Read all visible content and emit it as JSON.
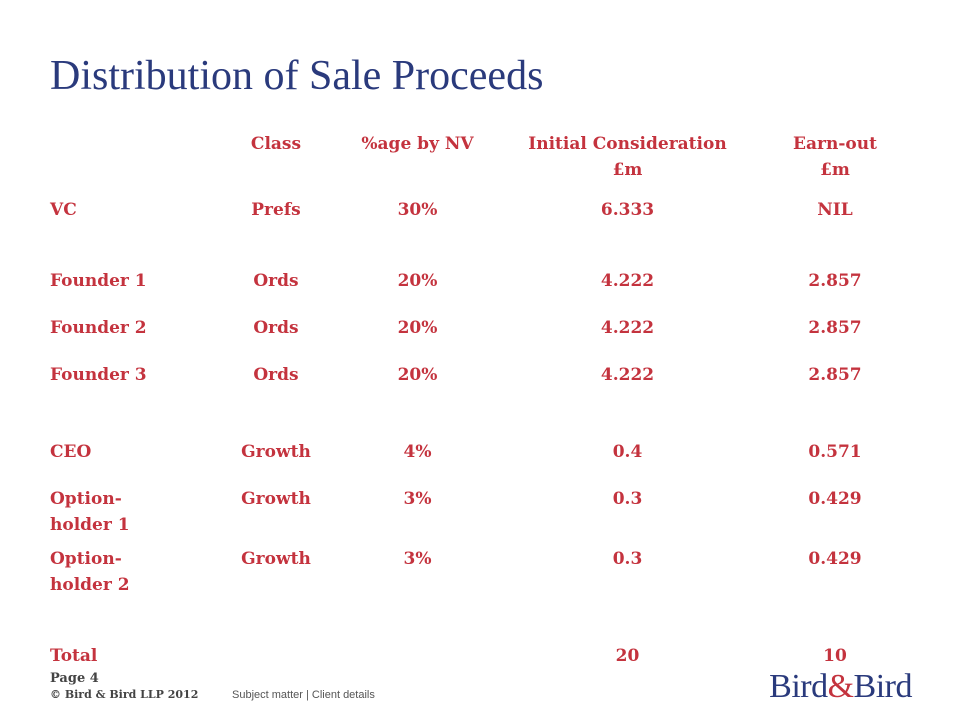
{
  "title": "Distribution of Sale Proceeds",
  "table": {
    "headers": {
      "class": "Class",
      "pct": "%age by NV",
      "initial": "Initial Consideration\n£m",
      "earnout": "Earn-out\n£m"
    },
    "rows": [
      {
        "name": "VC",
        "class": "Prefs",
        "pct": "30%",
        "initial": "6.333",
        "earnout": "NIL"
      },
      {
        "name": "Founder 1",
        "class": "Ords",
        "pct": "20%",
        "initial": "4.222",
        "earnout": "2.857"
      },
      {
        "name": "Founder 2",
        "class": "Ords",
        "pct": "20%",
        "initial": "4.222",
        "earnout": "2.857"
      },
      {
        "name": "Founder 3",
        "class": "Ords",
        "pct": "20%",
        "initial": "4.222",
        "earnout": "2.857"
      },
      {
        "name": "CEO",
        "class": "Growth",
        "pct": "4%",
        "initial": "0.4",
        "earnout": "0.571"
      },
      {
        "name": "Option-\nholder 1",
        "class": "Growth",
        "pct": "3%",
        "initial": "0.3",
        "earnout": "0.429"
      },
      {
        "name": "Option-\nholder 2",
        "class": "Growth",
        "pct": "3%",
        "initial": "0.3",
        "earnout": "0.429"
      }
    ],
    "total": {
      "label": "Total",
      "initial": "20",
      "earnout": "10"
    }
  },
  "footer": {
    "page": "Page 4",
    "copyright": "© Bird & Bird LLP 2012",
    "subject": "Subject matter | Client details"
  },
  "logo": {
    "left": "Bird",
    "amp": "&",
    "right": "Bird"
  },
  "colors": {
    "title": "#2a3a7c",
    "table_text": "#c4333e",
    "logo_amp": "#c4333e"
  }
}
